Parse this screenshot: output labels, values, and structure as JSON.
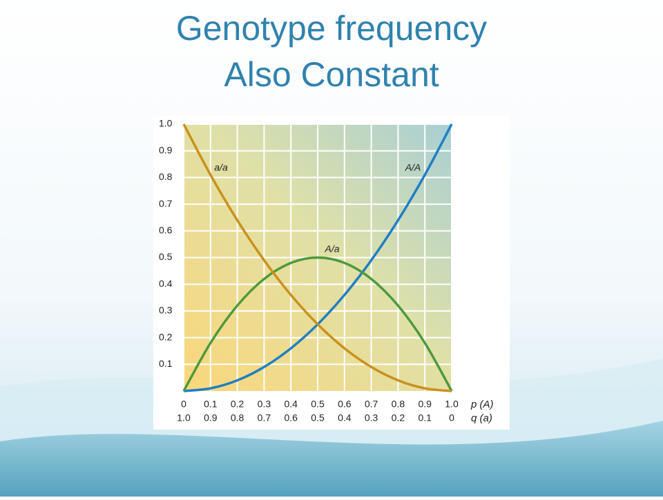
{
  "chart_data": {
    "type": "line",
    "title": [
      "Genotype frequency",
      "Also Constant"
    ],
    "x": [
      0,
      0.1,
      0.2,
      0.3,
      0.4,
      0.5,
      0.6,
      0.7,
      0.8,
      0.9,
      1
    ],
    "series": [
      {
        "name": "A/A",
        "color": "#1f7fc4",
        "values": [
          0,
          0.01,
          0.04,
          0.09,
          0.16,
          0.25,
          0.36,
          0.49,
          0.64,
          0.81,
          1
        ]
      },
      {
        "name": "A/a",
        "color": "#4c9a3c",
        "values": [
          0,
          0.18,
          0.32,
          0.42,
          0.48,
          0.5,
          0.48,
          0.42,
          0.32,
          0.18,
          0
        ]
      },
      {
        "name": "a/a",
        "color": "#c9911c",
        "values": [
          1,
          0.81,
          0.64,
          0.49,
          0.36,
          0.25,
          0.16,
          0.09,
          0.04,
          0.01,
          0
        ]
      }
    ],
    "xlabel": "p (A)",
    "x2label": "q (a)",
    "xlim": [
      0,
      1
    ],
    "xticks": [
      0,
      0.1,
      0.2,
      0.3,
      0.4,
      0.5,
      0.6,
      0.7,
      0.8,
      0.9,
      {
        "value": 1,
        "label": "1.0"
      }
    ],
    "x2lim": [
      1,
      0
    ],
    "x2ticks": [
      {
        "value": 1,
        "label": "1.0"
      },
      0.9,
      0.8,
      0.7,
      0.6,
      0.5,
      0.4,
      0.3,
      0.2,
      0.1,
      0
    ],
    "ylim": [
      0,
      1
    ],
    "yticks": [
      0.1,
      0.2,
      0.3,
      0.4,
      0.5,
      0.6,
      0.7,
      0.8,
      0.9,
      {
        "value": 1,
        "label": "1.0"
      }
    ],
    "grid": true
  }
}
